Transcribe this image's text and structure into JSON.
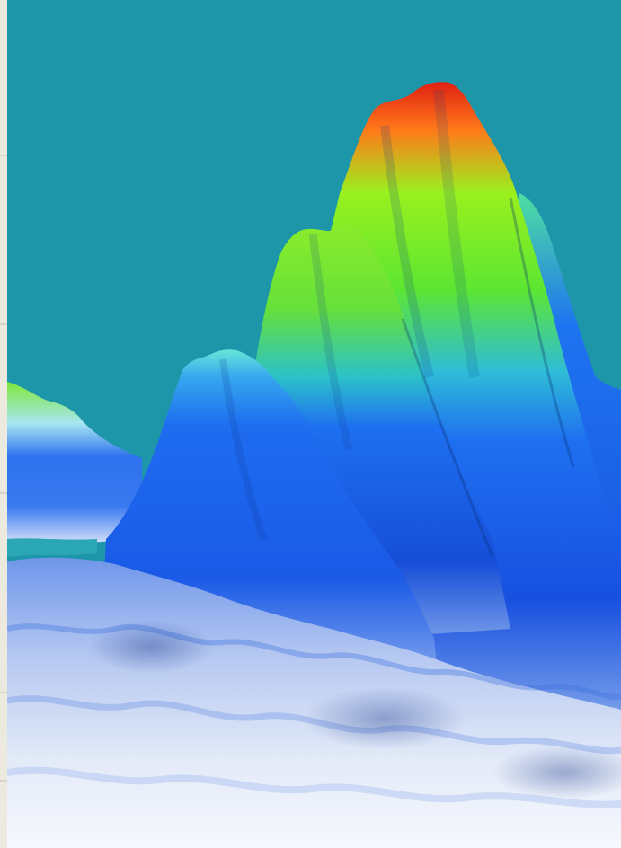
{
  "image": {
    "subject": "3d-surface-render",
    "colors": {
      "background": "#1e96aa",
      "peak_high": "#e02010",
      "peak_mid": "#73f020",
      "mid": "#1e63f0",
      "base": "#f5f8fd",
      "left_strip": "#ece9df"
    }
  }
}
